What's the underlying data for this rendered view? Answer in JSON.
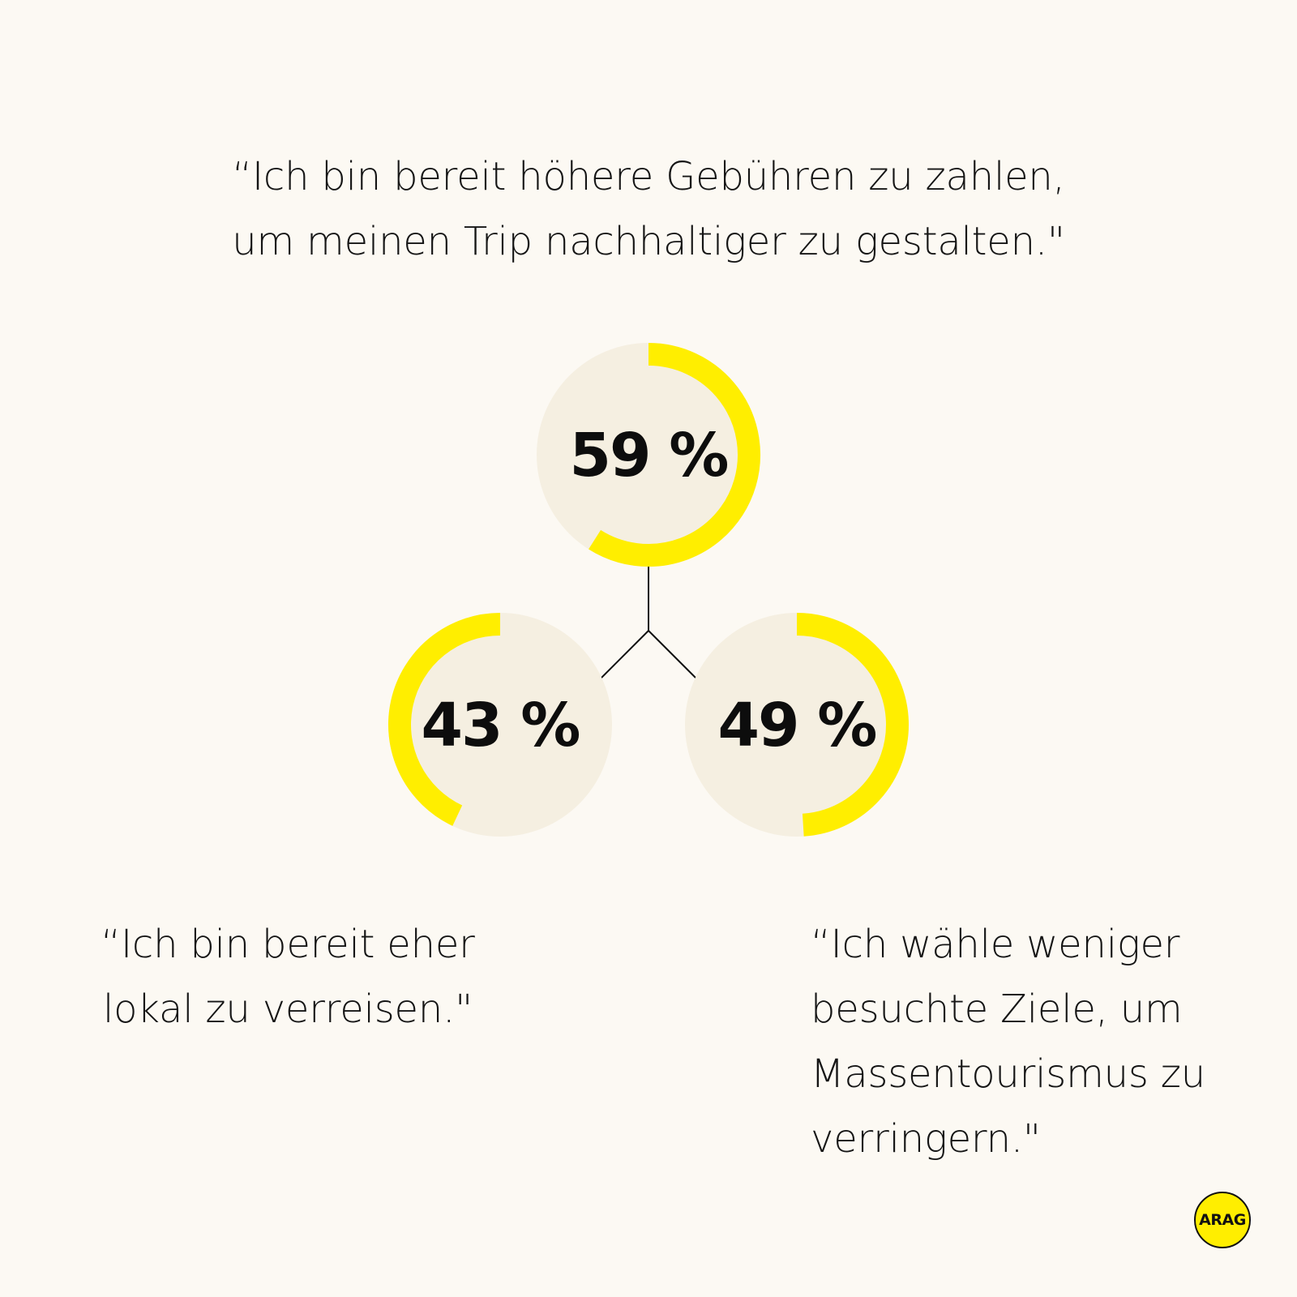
{
  "colors": {
    "background": "#fcf9f3",
    "ring_fill": "#f5efe1",
    "ring_accent": "#ffee00",
    "text": "#111111"
  },
  "quotes": {
    "top": [
      "“Ich bin bereit höhere Gebühren zu zahlen,",
      "um meinen Trip nachhaltiger zu gestalten.\""
    ],
    "left": [
      "“Ich bin bereit eher",
      "lokal zu verreisen.\""
    ],
    "right": [
      "“Ich wähle weniger",
      "besuchte Ziele, um",
      "Massentourismus zu",
      "verringern.\""
    ]
  },
  "chart_data": {
    "type": "donut",
    "items": [
      {
        "id": "top",
        "value": 59,
        "label": "59 %",
        "direction": "clockwise"
      },
      {
        "id": "left",
        "value": 43,
        "label": "43 %",
        "direction": "counterclockwise"
      },
      {
        "id": "right",
        "value": 49,
        "label": "49 %",
        "direction": "clockwise"
      }
    ],
    "max": 100
  },
  "logo": {
    "text": "ARAG",
    "icon": "arag-logo-icon"
  }
}
